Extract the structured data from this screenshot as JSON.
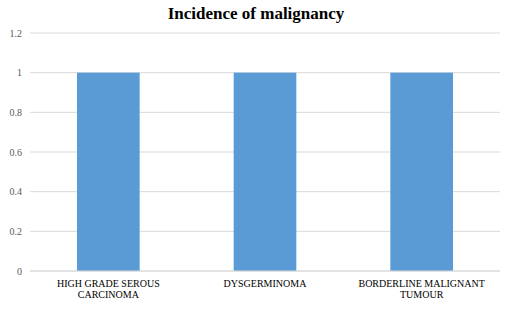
{
  "chart_data": {
    "type": "bar",
    "title": "Incidence of malignancy",
    "categories": [
      "HIGH GRADE SEROUS CARCINOMA",
      "DYSGERMINOMA",
      "BORDERLINE MALIGNANT TUMOUR"
    ],
    "values": [
      1,
      1,
      1
    ],
    "color": "#5b9bd5",
    "ylim": [
      0,
      1.2
    ],
    "yticks": [
      0,
      0.2,
      0.4,
      0.6,
      0.8,
      1,
      1.2
    ],
    "grid": true
  }
}
